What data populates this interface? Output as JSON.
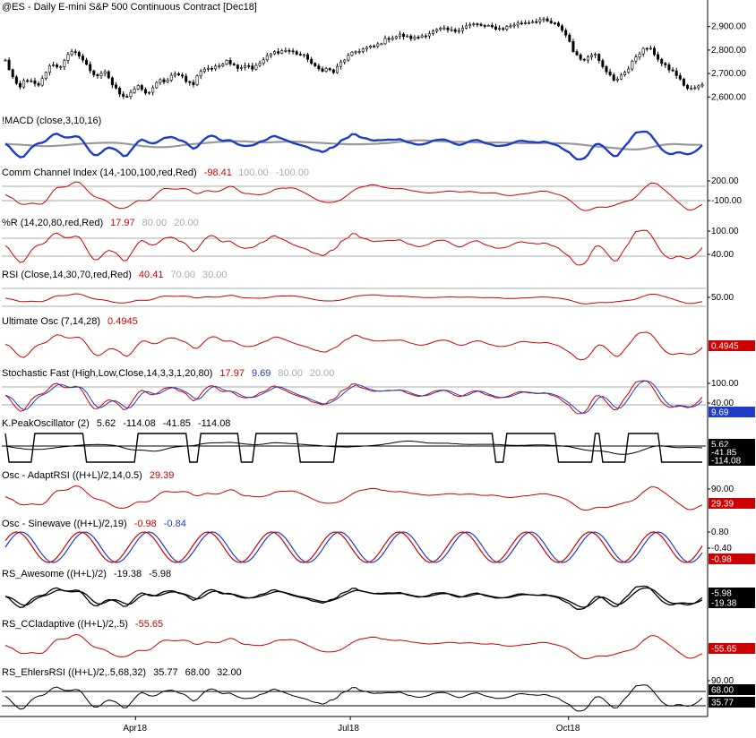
{
  "chart_data": [
    {
      "type": "candlestick",
      "panel": "price",
      "title": "@ES - Daily  E-mini S&P 500 Continuous Contract [Dec18]",
      "yticks": [
        "2,900.00",
        "2,800.00",
        "2,700.00",
        "2,600.00"
      ],
      "ytick_values": [
        2900,
        2800,
        2700,
        2600
      ],
      "ylim": [
        2540,
        2960
      ],
      "x_labels": [
        "Apr18",
        "Jul18",
        "Oct18"
      ],
      "x_label_positions": [
        0.19,
        0.495,
        0.805
      ],
      "last_value": 2650,
      "approx_closes": [
        2755,
        2690,
        2630,
        2680,
        2660,
        2645,
        2705,
        2745,
        2720,
        2770,
        2790,
        2780,
        2740,
        2700,
        2690,
        2705,
        2650,
        2618,
        2600,
        2630,
        2645,
        2610,
        2640,
        2670,
        2665,
        2695,
        2700,
        2670,
        2650,
        2710,
        2725,
        2720,
        2735,
        2760,
        2735,
        2725,
        2740,
        2720,
        2745,
        2770,
        2790,
        2795,
        2800,
        2790,
        2780,
        2770,
        2730,
        2715,
        2720,
        2705,
        2745,
        2770,
        2790,
        2800,
        2810,
        2815,
        2830,
        2850,
        2855,
        2865,
        2855,
        2850,
        2860,
        2870,
        2880,
        2890,
        2885,
        2880,
        2895,
        2905,
        2910,
        2905,
        2900,
        2895,
        2890,
        2900,
        2910,
        2915,
        2920,
        2925,
        2930,
        2920,
        2910,
        2890,
        2850,
        2780,
        2760,
        2770,
        2790,
        2740,
        2700,
        2660,
        2700,
        2720,
        2770,
        2800,
        2810,
        2780,
        2740,
        2720,
        2700,
        2660,
        2630,
        2640,
        2650
      ]
    },
    {
      "type": "line",
      "panel": "macd",
      "title": "!MACD (close,3,10,16)",
      "series": [
        {
          "name": "MACD",
          "color": "#1f3cc8"
        },
        {
          "name": "Signal",
          "color": "#999999"
        }
      ]
    },
    {
      "type": "line",
      "panel": "cci",
      "title": "Comm Channel Index (14,-100,100,red,Red)",
      "values_text": [
        "-98.41",
        "100.00",
        "-100.00"
      ],
      "value_colors": [
        "#cc0000",
        "#aaaaaa",
        "#aaaaaa"
      ],
      "yticks": [
        "200.00",
        "-100.00"
      ],
      "last_value": -98.41
    },
    {
      "type": "line",
      "panel": "williams_r",
      "title": "%R (14,20,80,red,Red)",
      "values_text": [
        "17.97",
        "80.00",
        "20.00"
      ],
      "value_colors": [
        "#cc0000",
        "#aaaaaa",
        "#aaaaaa"
      ],
      "yticks": [
        "100.00",
        "40.00"
      ],
      "last_value": 17.97
    },
    {
      "type": "line",
      "panel": "rsi",
      "title": "RSI (Close,14,30,70,red,Red)",
      "values_text": [
        "40.41",
        "70.00",
        "30.00"
      ],
      "value_colors": [
        "#cc0000",
        "#aaaaaa",
        "#aaaaaa"
      ],
      "yticks": [
        "50.00"
      ],
      "last_value": 40.41
    },
    {
      "type": "line",
      "panel": "ultimate_osc",
      "title": "Ultimate Osc (7,14,28)",
      "values_text": [
        "0.4945"
      ],
      "value_colors": [
        "#cc0000"
      ],
      "badge": "0.4945",
      "last_value": 0.4945
    },
    {
      "type": "line",
      "panel": "stochastic",
      "title": "Stochastic Fast (High,Low,Close,14,3,3,1,20,80)",
      "values_text": [
        "17.97",
        "9.69",
        "80.00",
        "20.00"
      ],
      "value_colors": [
        "#cc0000",
        "#1f3cc8",
        "#aaaaaa",
        "#aaaaaa"
      ],
      "yticks": [
        "100.00",
        "40.00"
      ],
      "badge": "9.69",
      "series": [
        {
          "name": "%K",
          "color": "#cc0000",
          "last": 17.97
        },
        {
          "name": "%D",
          "color": "#1f3cc8",
          "last": 9.69
        }
      ]
    },
    {
      "type": "line",
      "panel": "peak_oscillator",
      "title": "K.PeakOscillator (2)",
      "values_text": [
        "5.62",
        "-114.08",
        "-41.85",
        "-114.08"
      ],
      "value_colors": [
        "#000000",
        "#000000",
        "#000000",
        "#000000"
      ],
      "badges": [
        "5.62",
        "-41.85",
        "-114.08"
      ]
    },
    {
      "type": "line",
      "panel": "adapt_rsi",
      "title": "Osc - AdaptRSI ((H+L)/2,14,0.5)",
      "values_text": [
        "29.39"
      ],
      "value_colors": [
        "#cc0000"
      ],
      "yticks": [
        "90.00"
      ],
      "badge": "29.39",
      "last_value": 29.39
    },
    {
      "type": "line",
      "panel": "sinewave",
      "title": "Osc - Sinewave ((H+L)/2,19)",
      "values_text": [
        "-0.98",
        "-0.84"
      ],
      "value_colors": [
        "#cc0000",
        "#1f3cc8"
      ],
      "yticks": [
        "0.80",
        "-0.40"
      ],
      "badge": "-0.98"
    },
    {
      "type": "line",
      "panel": "awesome",
      "title": "RS_Awesome ((H+L)/2)",
      "values_text": [
        "-19.38",
        "-5.98"
      ],
      "value_colors": [
        "#000000",
        "#000000"
      ],
      "badges": [
        "-5.98",
        "-19.38"
      ]
    },
    {
      "type": "line",
      "panel": "ccladaptive",
      "title": "RS_CCladaptive ((H+L)/2,.5)",
      "values_text": [
        "-55.65"
      ],
      "value_colors": [
        "#cc0000"
      ],
      "badge": "-55.65",
      "last_value": -55.65
    },
    {
      "type": "line",
      "panel": "ehlers_rsi",
      "title": "RS_EhlersRSI ((H+L)/2,.5,68,32)",
      "values_text": [
        "35.77",
        "68.00",
        "32.00"
      ],
      "value_colors": [
        "#000000",
        "#000000",
        "#000000"
      ],
      "yticks": [
        "90.00"
      ],
      "badges": [
        "68.00",
        "35.77"
      ]
    }
  ],
  "colors": {
    "background": "#ffffff",
    "red": "#cc0000",
    "blue": "#1f3cc8",
    "gray": "#999999",
    "guide": "#aaaaaa",
    "black": "#000000"
  }
}
